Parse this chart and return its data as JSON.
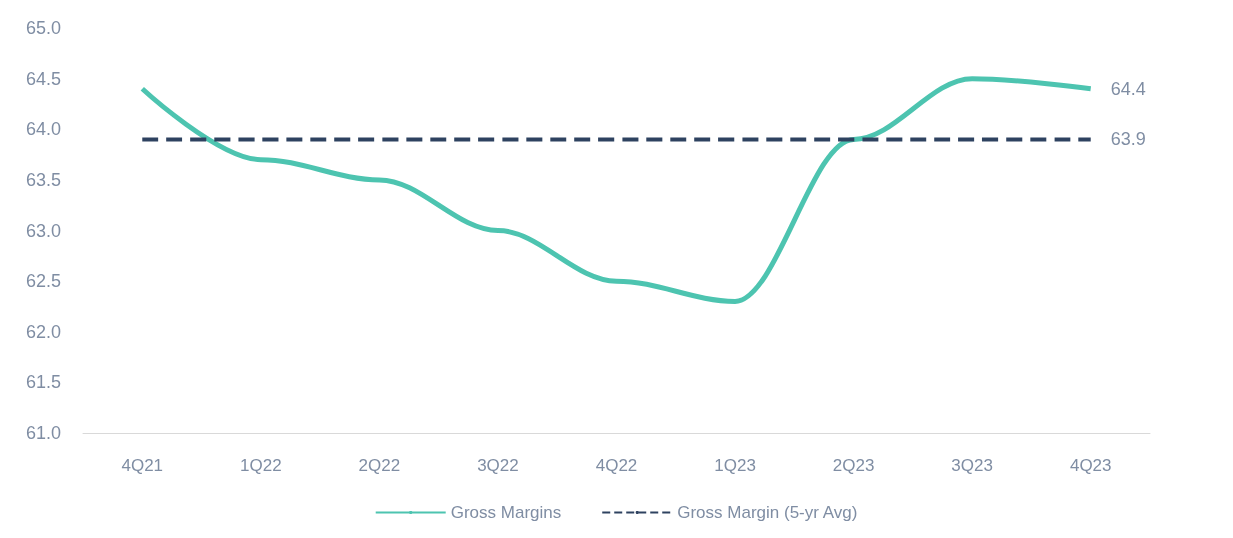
{
  "chart_data": {
    "type": "line",
    "categories": [
      "4Q21",
      "1Q22",
      "2Q22",
      "3Q22",
      "4Q22",
      "1Q23",
      "2Q23",
      "3Q23",
      "4Q23"
    ],
    "series": [
      {
        "name": "Gross Margins",
        "color": "#4dc4b0",
        "line_style": "solid",
        "values": [
          64.4,
          63.7,
          63.5,
          63.0,
          62.5,
          62.3,
          63.9,
          64.5,
          64.4
        ],
        "value_labels": [
          null,
          null,
          null,
          null,
          null,
          null,
          null,
          null,
          "64.4"
        ]
      },
      {
        "name": "Gross Margin (5-yr Avg)",
        "color": "#2e4260",
        "line_style": "dashed",
        "values": [
          63.9,
          63.9,
          63.9,
          63.9,
          63.9,
          63.9,
          63.9,
          63.9,
          63.9
        ],
        "value_labels": [
          null,
          null,
          null,
          null,
          null,
          null,
          null,
          null,
          "63.9"
        ]
      }
    ],
    "ylim": [
      61,
      65
    ],
    "yticks": [
      {
        "value": 61,
        "label": "61.0"
      },
      {
        "value": 61.5,
        "label": "61.5"
      },
      {
        "value": 62,
        "label": "62.0"
      },
      {
        "value": 62.5,
        "label": "62.5"
      },
      {
        "value": 63,
        "label": "63.0"
      },
      {
        "value": 63.5,
        "label": "63.5"
      },
      {
        "value": 64,
        "label": "64.0"
      },
      {
        "value": 64.5,
        "label": "64.5"
      },
      {
        "value": 65,
        "label": "65.0"
      }
    ],
    "grid": false,
    "legend": "bottom",
    "marker": "none"
  }
}
